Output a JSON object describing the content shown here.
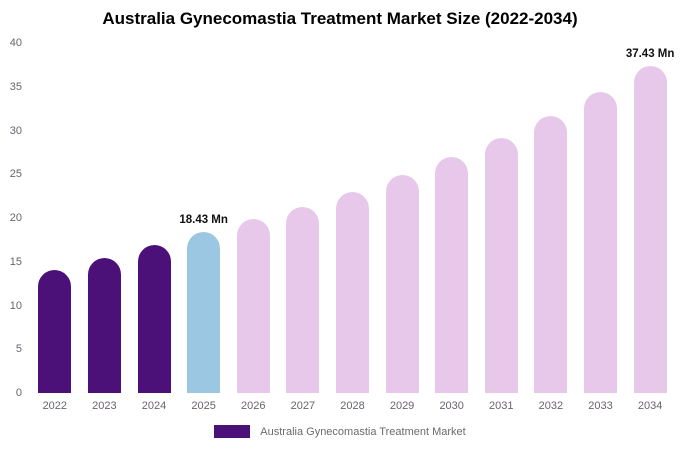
{
  "title": "Australia Gynecomastia Treatment Market Size (2022-2034)",
  "legend": {
    "label": "Australia Gynecomastia Treatment Market",
    "swatch_color": "#4b1179"
  },
  "chart_data": {
    "type": "bar",
    "title": "Australia Gynecomastia Treatment Market Size (2022-2034)",
    "unit": "Mn",
    "categories": [
      "2022",
      "2023",
      "2024",
      "2025",
      "2026",
      "2027",
      "2028",
      "2029",
      "2030",
      "2031",
      "2032",
      "2033",
      "2034"
    ],
    "values": [
      14.1,
      15.4,
      16.9,
      18.43,
      19.9,
      21.3,
      23.0,
      24.9,
      27.0,
      29.2,
      31.7,
      34.4,
      37.43
    ],
    "labels": [
      "",
      "",
      "",
      "18.43 Mn",
      "",
      "",
      "",
      "",
      "",
      "",
      "",
      "",
      "37.43 Mn"
    ],
    "bar_colors": [
      "#4b1179",
      "#4b1179",
      "#4b1179",
      "#9cc7e2",
      "#e8c8ea",
      "#e8c8ea",
      "#e8c8ea",
      "#e8c8ea",
      "#e8c8ea",
      "#e8c8ea",
      "#e8c8ea",
      "#e8c8ea",
      "#e8c8ea"
    ],
    "segment_colors": {
      "historical_2022_2024": "#4b1179",
      "current_2025": "#9cc7e2",
      "forecast_2026_2034": "#e8c8ea"
    },
    "xlabel": "",
    "ylabel": "",
    "ylim": [
      0,
      40
    ],
    "yticks": [
      0,
      5,
      10,
      15,
      20,
      25,
      30,
      35,
      40
    ],
    "grid": false,
    "legend_position": "bottom"
  }
}
